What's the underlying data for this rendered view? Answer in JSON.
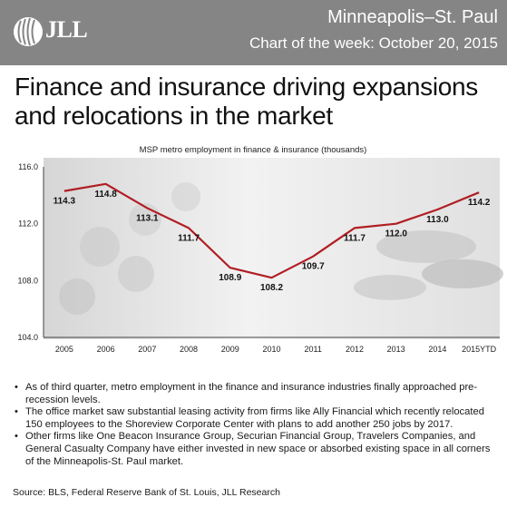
{
  "header": {
    "logo_text": "JLL",
    "city": "Minneapolis–St. Paul",
    "date_line": "Chart of the week: October 20, 2015"
  },
  "title": "Finance and insurance driving expansions and relocations in the market",
  "colors": {
    "header_bg": "#858585",
    "line": "#b01e23",
    "text": "#111111"
  },
  "chart_data": {
    "type": "line",
    "title": "MSP metro employment in finance & insurance (thousands)",
    "categories": [
      "2005",
      "2006",
      "2007",
      "2008",
      "2009",
      "2010",
      "2011",
      "2012",
      "2013",
      "2014",
      "2015YTD"
    ],
    "series": [
      {
        "values": [
          114.3,
          114.8,
          113.1,
          111.7,
          108.9,
          108.2,
          109.7,
          111.7,
          112.0,
          113.0,
          114.2
        ]
      }
    ],
    "value_labels": [
      "114.3",
      "114.8",
      "113.1",
      "111.7",
      "108.9",
      "108.2",
      "109.7",
      "111.7",
      "112.0",
      "113.0",
      "114.2"
    ],
    "ylim": [
      104.0,
      116.0
    ],
    "yticks": [
      "104.0",
      "108.0",
      "112.0",
      "116.0"
    ],
    "xlabel": "",
    "ylabel": "",
    "grid": false
  },
  "bullets": [
    "As of third quarter, metro employment in the finance and insurance industries finally approached pre-recession levels.",
    "The office market saw substantial leasing activity from firms like Ally Financial which recently relocated 150 employees to the Shoreview Corporate Center with plans to add another 250 jobs by 2017.",
    "Other firms like One Beacon Insurance Group, Securian Financial Group, Travelers Companies, and General Casualty Company have either invested in new space or absorbed existing space in all corners of the Minneapolis-St. Paul market."
  ],
  "source": "Source: BLS, Federal Reserve Bank of St. Louis, JLL Research"
}
